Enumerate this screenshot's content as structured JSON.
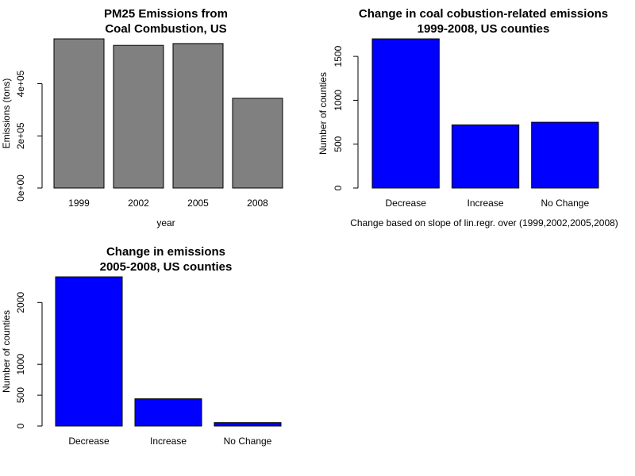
{
  "chart_data": [
    {
      "type": "bar",
      "title": [
        "PM25 Emissions from",
        "Coal Combustion, US"
      ],
      "xlabel": "year",
      "ylabel": "Emissions (tons)",
      "categories": [
        "1999",
        "2002",
        "2005",
        "2008"
      ],
      "values": [
        572000,
        547000,
        554000,
        344000
      ],
      "ylim": [
        0,
        572000
      ],
      "yticks": [
        0,
        200000,
        400000
      ],
      "ytick_labels": [
        "0e+00",
        "2e+05",
        "4e+05"
      ],
      "bar_color": "#808080",
      "grid": false,
      "legend": "none"
    },
    {
      "type": "bar",
      "title": [
        "Change in coal cobustion-related emissions",
        "1999-2008, US counties"
      ],
      "xlabel": "Change based on slope of lin.regr. over (1999,2002,2005,2008)",
      "ylabel": "Number of counties",
      "categories": [
        "Decrease",
        "Increase",
        "No Change"
      ],
      "values": [
        1700,
        720,
        750
      ],
      "ylim": [
        0,
        1700
      ],
      "yticks": [
        0,
        500,
        1000,
        1500
      ],
      "ytick_labels": [
        "0",
        "500",
        "1000",
        "1500"
      ],
      "bar_color": "#0000ff",
      "grid": false,
      "legend": "none"
    },
    {
      "type": "bar",
      "title": [
        "Change in emissions",
        "2005-2008, US counties"
      ],
      "xlabel": "",
      "ylabel": "Number of counties",
      "categories": [
        "Decrease",
        "Increase",
        "No Change"
      ],
      "values": [
        2415,
        440,
        55
      ],
      "ylim": [
        0,
        2415
      ],
      "yticks": [
        0,
        500,
        1000,
        2000
      ],
      "ytick_labels": [
        "0",
        "500",
        "1000",
        "2000"
      ],
      "bar_color": "#0000ff",
      "grid": false,
      "legend": "none"
    }
  ]
}
